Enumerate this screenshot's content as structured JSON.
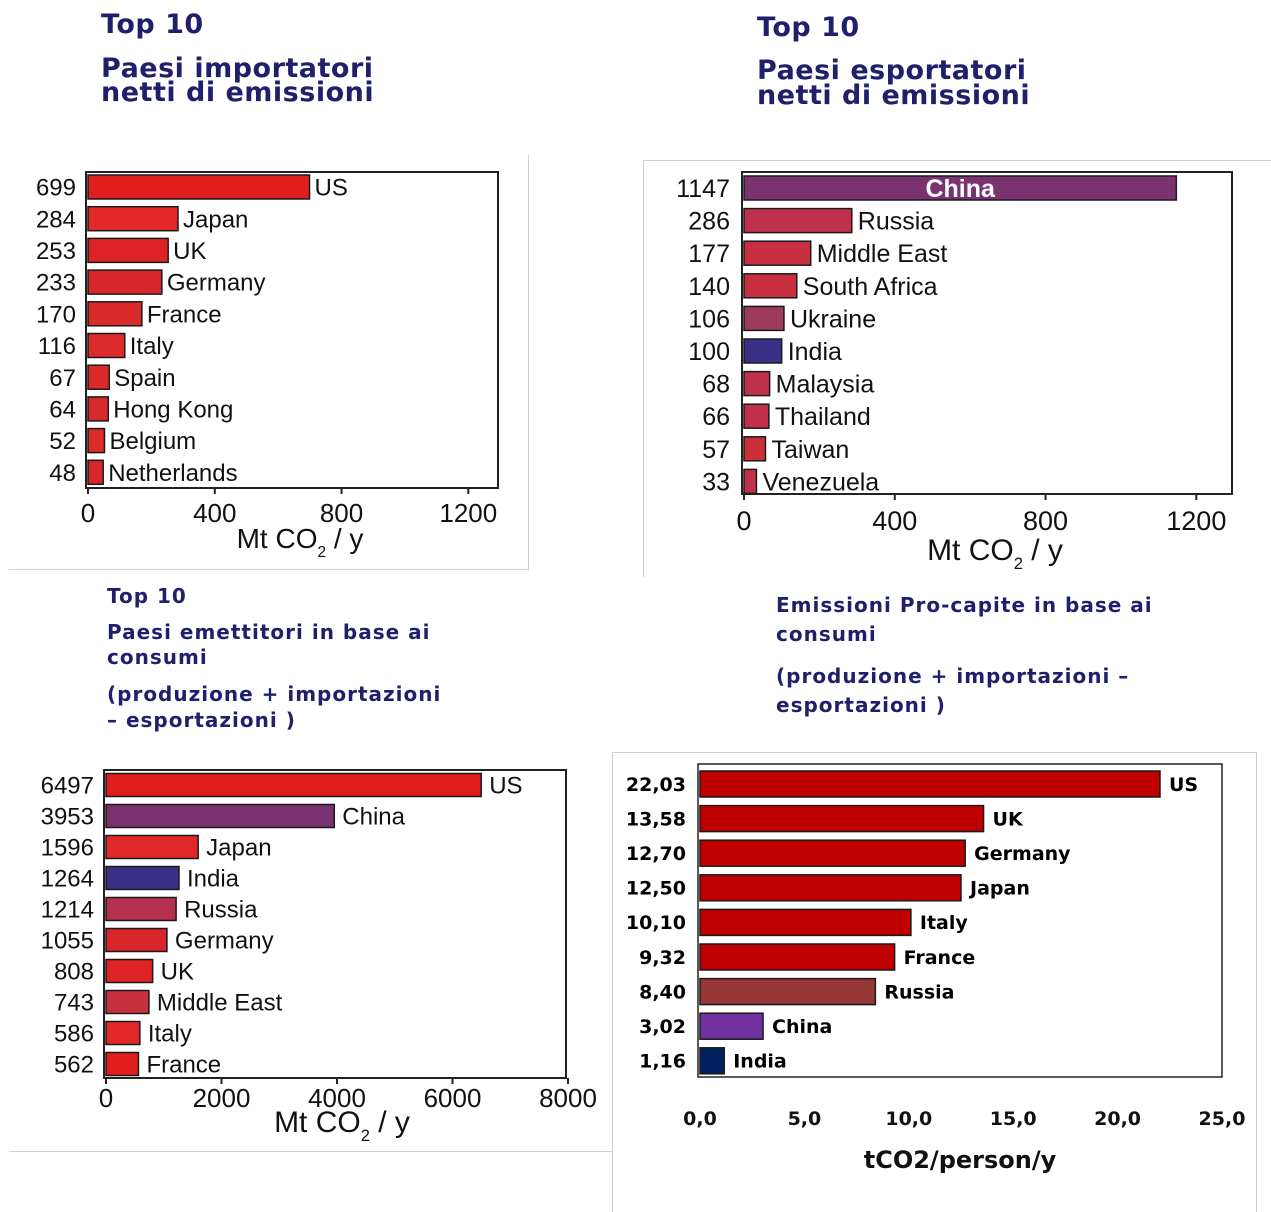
{
  "titles": {
    "p1_top": "Top 10",
    "p1_sub1": "Paesi importatori",
    "p1_sub2": "netti di emissioni",
    "p2_top": "Top 10",
    "p2_sub1": "Paesi esportatori",
    "p2_sub2": "netti di emissioni",
    "p3_top": "Top 10",
    "p3_sub1": "Paesi emettitori in base ai",
    "p3_sub2": "consumi",
    "p3_sub3": "(produzione + importazioni",
    "p3_sub4": "– esportazioni )",
    "p4_sub1": "Emissioni Pro-capite in base ai",
    "p4_sub2": "consumi",
    "p4_sub3": "(produzione + importazioni –",
    "p4_sub4": "esportazioni )"
  },
  "chart_data": [
    {
      "type": "bar",
      "orientation": "horizontal",
      "categories": [
        "US",
        "Japan",
        "UK",
        "Germany",
        "France",
        "Italy",
        "Spain",
        "Hong Kong",
        "Belgium",
        "Netherlands"
      ],
      "values": [
        699,
        284,
        253,
        233,
        170,
        116,
        67,
        64,
        52,
        48
      ],
      "value_labels": [
        "699",
        "284",
        "253",
        "233",
        "170",
        "116",
        "67",
        "64",
        "52",
        "48"
      ],
      "colors": [
        "#e01e1e",
        "#e22828",
        "#dd2326",
        "#d8262b",
        "#db2a2a",
        "#dd2a2a",
        "#db2a2a",
        "#d82a2e",
        "#dd2a2a",
        "#d8262b"
      ],
      "xlabel": "Mt CO",
      "xlabel_sub": "2",
      "xlabel_tail": " / y",
      "xlim": [
        0,
        1300
      ],
      "xticks": [
        0,
        400,
        800,
        1200
      ],
      "xtick_labels": [
        "0",
        "400",
        "800",
        "1200"
      ],
      "grid": false
    },
    {
      "type": "bar",
      "orientation": "horizontal",
      "categories": [
        "China",
        "Russia",
        "Middle East",
        "South Africa",
        "Ukraine",
        "India",
        "Malaysia",
        "Thailand",
        "Taiwan",
        "Venezuela"
      ],
      "values": [
        1147,
        286,
        177,
        140,
        106,
        100,
        68,
        66,
        57,
        33
      ],
      "value_labels": [
        "1147",
        "286",
        "177",
        "140",
        "106",
        "100",
        "68",
        "66",
        "57",
        "33"
      ],
      "colors": [
        "#7a3370",
        "#c0304a",
        "#c8303f",
        "#c8303f",
        "#9e3a5e",
        "#3a2f86",
        "#c0304a",
        "#c0304a",
        "#c93038",
        "#c0304a"
      ],
      "xlabel": "Mt CO",
      "xlabel_sub": "2",
      "xlabel_tail": " / y",
      "xlim": [
        0,
        1300
      ],
      "xticks": [
        0,
        400,
        800,
        1200
      ],
      "xtick_labels": [
        "0",
        "400",
        "800",
        "1200"
      ],
      "grid": false
    },
    {
      "type": "bar",
      "orientation": "horizontal",
      "categories": [
        "US",
        "China",
        "Japan",
        "India",
        "Russia",
        "Germany",
        "UK",
        "Middle East",
        "Italy",
        "France"
      ],
      "values": [
        6497,
        3953,
        1596,
        1264,
        1214,
        1055,
        808,
        743,
        586,
        562
      ],
      "value_labels": [
        "6497",
        "3953",
        "1596",
        "1264",
        "1214",
        "1055",
        "808",
        "743",
        "586",
        "562"
      ],
      "colors": [
        "#e01e1e",
        "#7a3370",
        "#e22828",
        "#3a2f86",
        "#b4304e",
        "#d8262b",
        "#dd2326",
        "#c8303f",
        "#e22828",
        "#e01e1e"
      ],
      "xlabel": "Mt CO",
      "xlabel_sub": "2",
      "xlabel_tail": " / y",
      "xlim": [
        0,
        8000
      ],
      "xticks": [
        0,
        2000,
        4000,
        6000,
        8000
      ],
      "xtick_labels": [
        "0",
        "2000",
        "4000",
        "6000",
        "8000"
      ],
      "grid": false
    },
    {
      "type": "bar",
      "orientation": "horizontal",
      "categories": [
        "US",
        "UK",
        "Germany",
        "Japan",
        "Italy",
        "France",
        "Russia",
        "China",
        "India"
      ],
      "values": [
        22.03,
        13.58,
        12.7,
        12.5,
        10.1,
        9.32,
        8.4,
        3.02,
        1.16
      ],
      "value_labels": [
        "22,03",
        "13,58",
        "12,70",
        "12,50",
        "10,10",
        "9,32",
        "8,40",
        "3,02",
        "1,16"
      ],
      "colors": [
        "#c00000",
        "#c00000",
        "#c00000",
        "#c00000",
        "#c00000",
        "#c00000",
        "#953735",
        "#7030a0",
        "#002060"
      ],
      "xlabel": "tCO2/person/y",
      "xlim": [
        0,
        25
      ],
      "xticks": [
        0,
        5,
        10,
        15,
        20,
        25
      ],
      "xtick_labels": [
        "0,0",
        "5,0",
        "10,0",
        "15,0",
        "20,0",
        "25,0"
      ],
      "grid": false
    }
  ]
}
